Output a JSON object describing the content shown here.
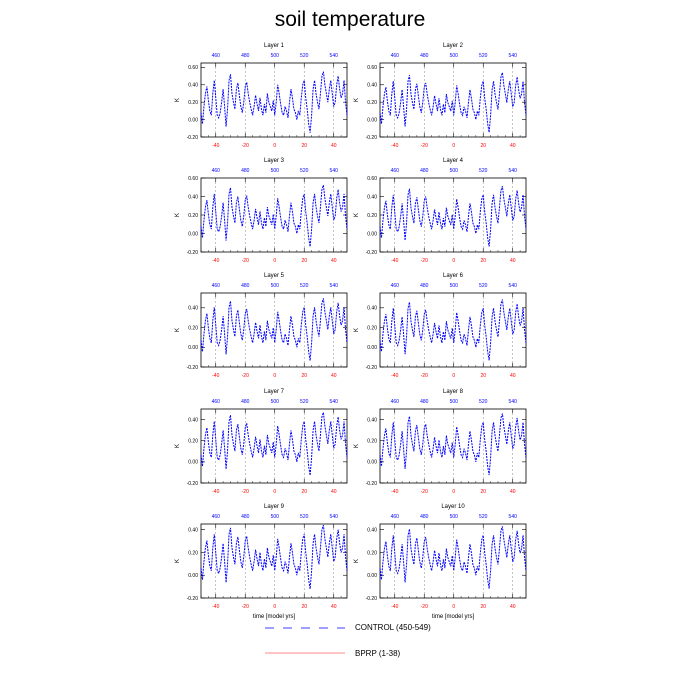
{
  "title": "soil temperature",
  "chart_data": {
    "type": "line",
    "layers": [
      {
        "title": "Layer 1",
        "ylim": [
          -0.2,
          0.65
        ],
        "yticks": [
          -0.2,
          0.0,
          0.2,
          0.4,
          0.6
        ],
        "ytick_labels": [
          "-0.20",
          "0.00",
          "0.20",
          "0.40",
          "0.60"
        ]
      },
      {
        "title": "Layer 2",
        "ylim": [
          -0.2,
          0.65
        ],
        "yticks": [
          -0.2,
          0.0,
          0.2,
          0.4,
          0.6
        ],
        "ytick_labels": [
          "-0.20",
          "0.00",
          "0.20",
          "0.40",
          "0.60"
        ]
      },
      {
        "title": "Layer 3",
        "ylim": [
          -0.2,
          0.6
        ],
        "yticks": [
          -0.2,
          0.0,
          0.2,
          0.4,
          0.6
        ],
        "ytick_labels": [
          "-0.20",
          "0.00",
          "0.20",
          "0.40",
          "0.60"
        ]
      },
      {
        "title": "Layer 4",
        "ylim": [
          -0.2,
          0.6
        ],
        "yticks": [
          -0.2,
          0.0,
          0.2,
          0.4,
          0.6
        ],
        "ytick_labels": [
          "-0.20",
          "0.00",
          "0.20",
          "0.40",
          "0.60"
        ]
      },
      {
        "title": "Layer 5",
        "ylim": [
          -0.2,
          0.55
        ],
        "yticks": [
          -0.2,
          0.0,
          0.2,
          0.4
        ],
        "ytick_labels": [
          "-0.20",
          "0.00",
          "0.20",
          "0.40"
        ]
      },
      {
        "title": "Layer 6",
        "ylim": [
          -0.2,
          0.55
        ],
        "yticks": [
          -0.2,
          0.0,
          0.2,
          0.4
        ],
        "ytick_labels": [
          "-0.20",
          "0.00",
          "0.20",
          "0.40"
        ]
      },
      {
        "title": "Layer 7",
        "ylim": [
          -0.2,
          0.5
        ],
        "yticks": [
          -0.2,
          0.0,
          0.2,
          0.4
        ],
        "ytick_labels": [
          "-0.20",
          "0.00",
          "0.20",
          "0.40"
        ]
      },
      {
        "title": "Layer 8",
        "ylim": [
          -0.2,
          0.5
        ],
        "yticks": [
          -0.2,
          0.0,
          0.2,
          0.4
        ],
        "ytick_labels": [
          "-0.20",
          "0.00",
          "0.20",
          "0.40"
        ]
      },
      {
        "title": "Layer 9",
        "ylim": [
          -0.2,
          0.45
        ],
        "yticks": [
          -0.2,
          0.0,
          0.2,
          0.4
        ],
        "ytick_labels": [
          "-0.20",
          "0.00",
          "0.20",
          "0.40"
        ]
      },
      {
        "title": "Layer 10",
        "ylim": [
          -0.2,
          0.45
        ],
        "yticks": [
          -0.2,
          0.0,
          0.2,
          0.4
        ],
        "ytick_labels": [
          "-0.20",
          "0.00",
          "0.20",
          "0.40"
        ]
      }
    ],
    "ylabel": "K",
    "xlabel": "time [model yrs]",
    "bottom_axis": {
      "range": [
        -50,
        49
      ],
      "ticks": [
        -40,
        -20,
        0,
        20,
        40
      ],
      "color": "#ff0000"
    },
    "top_axis": {
      "range": [
        450,
        549
      ],
      "ticks": [
        460,
        480,
        500,
        520,
        540
      ],
      "color": "#0000ff"
    },
    "vlines_at": [
      -40,
      -20,
      0,
      20,
      40
    ],
    "x_start": 450,
    "control_values": [
      0.08,
      -0.05,
      0.15,
      0.3,
      0.38,
      0.22,
      0.1,
      0.05,
      0.3,
      0.45,
      0.25,
      0.05,
      0.02,
      0.08,
      0.2,
      0.35,
      0.15,
      -0.08,
      0.12,
      0.45,
      0.52,
      0.3,
      0.2,
      0.12,
      0.35,
      0.42,
      0.28,
      0.15,
      0.08,
      0.2,
      0.38,
      0.43,
      0.3,
      0.2,
      0.12,
      0.05,
      0.15,
      0.28,
      0.18,
      0.1,
      0.25,
      0.12,
      0.05,
      0.18,
      0.08,
      0.3,
      0.2,
      0.15,
      0.1,
      0.22,
      0.05,
      0.2,
      0.4,
      0.3,
      0.18,
      0.08,
      0.05,
      0.15,
      0.1,
      0.02,
      0.2,
      0.35,
      0.25,
      0.12,
      0.08,
      0.0,
      0.1,
      0.05,
      0.25,
      0.4,
      0.45,
      0.25,
      0.12,
      -0.05,
      -0.15,
      0.05,
      0.35,
      0.45,
      0.3,
      0.2,
      0.12,
      0.3,
      0.5,
      0.55,
      0.4,
      0.3,
      0.2,
      0.35,
      0.45,
      0.3,
      0.15,
      0.2,
      0.4,
      0.5,
      0.35,
      0.25,
      0.3,
      0.45,
      0.2,
      0.05
    ],
    "layer_scale": [
      1.0,
      0.98,
      0.95,
      0.93,
      0.9,
      0.88,
      0.85,
      0.83,
      0.8,
      0.78
    ],
    "series": [
      {
        "name": "CONTROL (450-549)",
        "color": "#0000ff",
        "style": "dashed"
      },
      {
        "name": "BPRP (1-38)",
        "color": "#ff6060",
        "style": "solid"
      }
    ]
  }
}
